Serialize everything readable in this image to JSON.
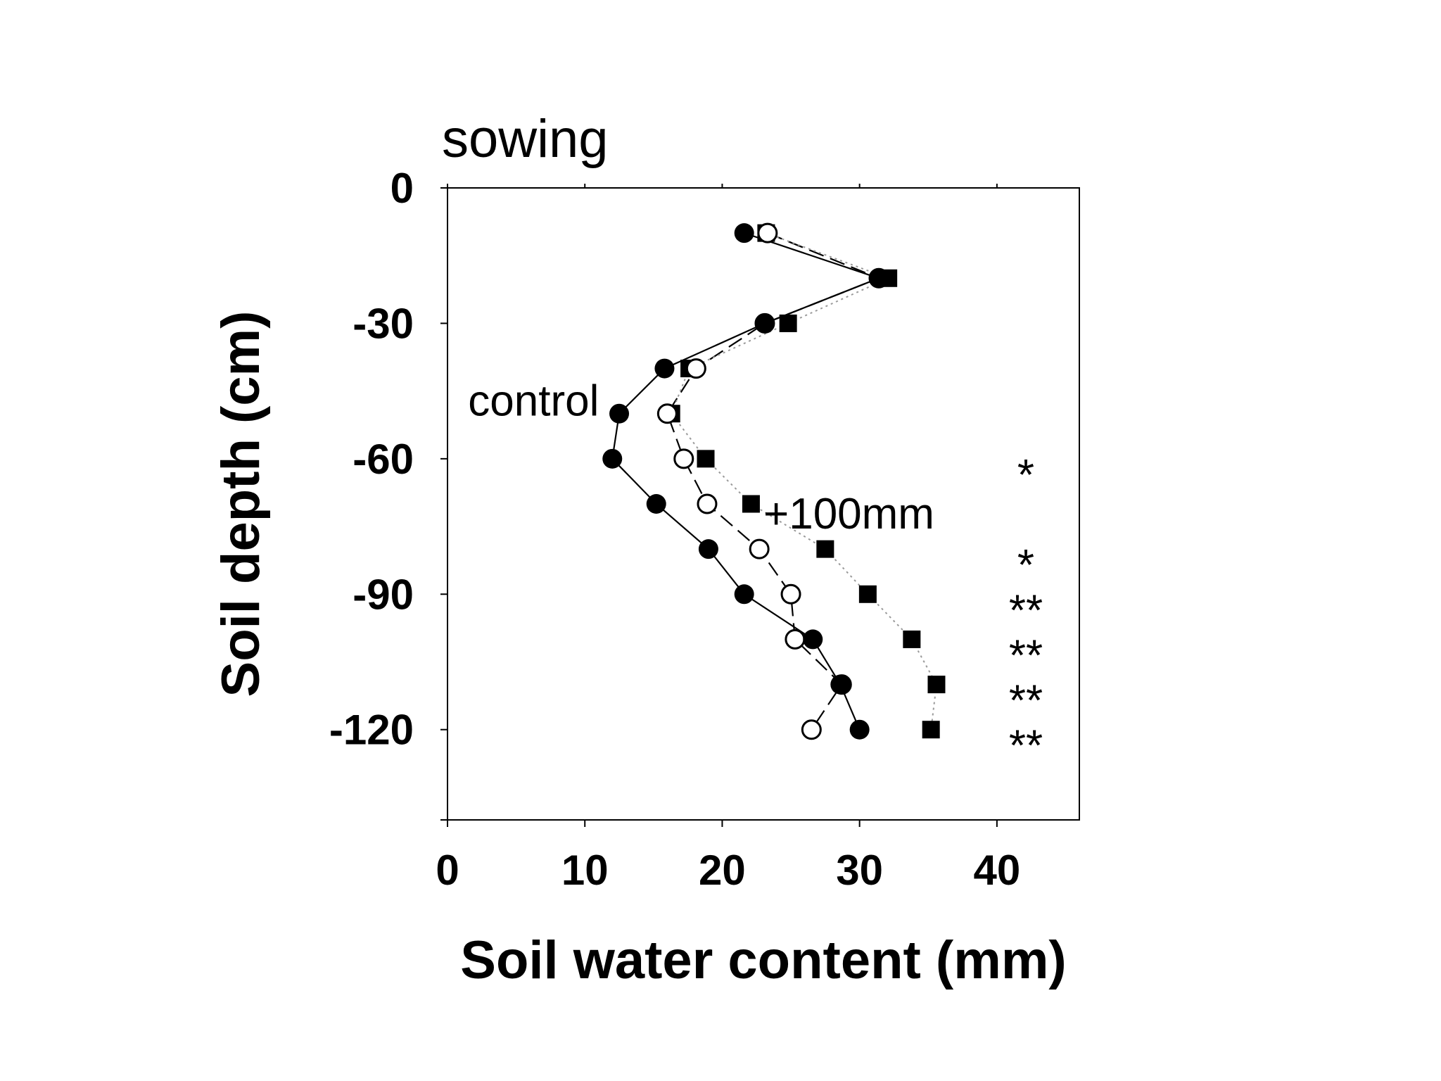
{
  "chart_data": {
    "type": "line",
    "title": "sowing",
    "xlabel": "Soil water content (mm)",
    "ylabel": "Soil depth (cm)",
    "xlim": [
      0,
      46
    ],
    "ylim": [
      -140,
      0
    ],
    "xticks": [
      0,
      10,
      20,
      30,
      40
    ],
    "yticks": [
      0,
      -30,
      -60,
      -90,
      -120
    ],
    "xtick_labels": [
      "0",
      "10",
      "20",
      "30",
      "40"
    ],
    "ytick_labels": [
      "0",
      "-30",
      "-60",
      "-90",
      "-120"
    ],
    "grid": false,
    "series": [
      {
        "marker": "filled-circle",
        "line": "solid",
        "color": "#000000",
        "x": [
          21.6,
          31.4,
          23.1,
          15.8,
          12.5,
          12.0,
          15.2,
          19.0,
          21.6,
          26.6,
          28.6,
          30.0
        ],
        "y": [
          -10,
          -20,
          -30,
          -40,
          -50,
          -60,
          -70,
          -80,
          -90,
          -100,
          -110,
          -120
        ]
      },
      {
        "marker": "open-circle",
        "line": "dashed",
        "color": "#000000",
        "x": [
          23.3,
          31.4,
          23.1,
          18.1,
          16.0,
          17.2,
          18.9,
          22.7,
          25.0,
          25.3,
          28.7,
          26.5
        ],
        "y": [
          -10,
          -20,
          -30,
          -40,
          -50,
          -60,
          -70,
          -80,
          -90,
          -100,
          -110,
          -120
        ]
      },
      {
        "marker": "filled-square",
        "line": "dotted",
        "color": "#000000",
        "x": [
          23.2,
          32.1,
          24.8,
          17.6,
          16.3,
          18.8,
          22.1,
          27.5,
          30.6,
          33.8,
          35.6,
          35.2
        ],
        "y": [
          -10,
          -20,
          -30,
          -40,
          -50,
          -60,
          -70,
          -80,
          -90,
          -100,
          -110,
          -120
        ]
      }
    ],
    "annotations": [
      {
        "text": "control",
        "x": 1.5,
        "y": -47
      },
      {
        "text": "+100mm",
        "x": 23.0,
        "y": -72
      }
    ],
    "significance": [
      {
        "text": "*",
        "y": -60
      },
      {
        "text": "*",
        "y": -80
      },
      {
        "text": "**",
        "y": -90
      },
      {
        "text": "**",
        "y": -100
      },
      {
        "text": "**",
        "y": -110
      },
      {
        "text": "**",
        "y": -120
      }
    ]
  }
}
